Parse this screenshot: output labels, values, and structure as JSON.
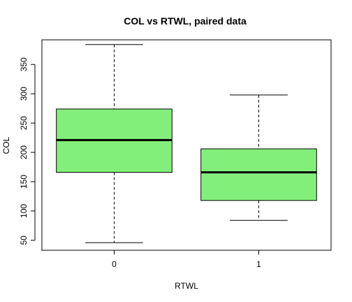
{
  "chart_data": {
    "type": "boxplot",
    "title": "COL vs RTWL, paired data",
    "xlabel": "RTWL",
    "ylabel": "COL",
    "categories": [
      "0",
      "1"
    ],
    "ylim": [
      33,
      392
    ],
    "yticks": [
      "50",
      "100",
      "150",
      "200",
      "250",
      "300",
      "350"
    ],
    "box_fill": "#83ef7b",
    "boxes": [
      {
        "category": "0",
        "whisker_low": 46,
        "q1": 166,
        "median": 221,
        "q3": 274,
        "whisker_high": 384
      },
      {
        "category": "1",
        "whisker_low": 84,
        "q1": 118,
        "median": 166,
        "q3": 206,
        "whisker_high": 298
      }
    ],
    "grid": false,
    "legend": "none"
  }
}
